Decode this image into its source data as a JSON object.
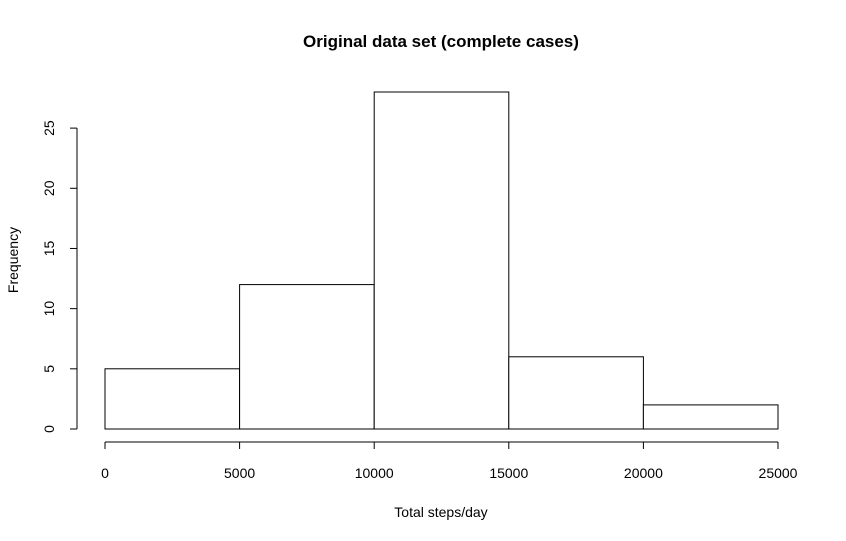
{
  "chart_data": {
    "type": "bar",
    "title": "Original data set (complete cases)",
    "xlabel": "Total steps/day",
    "ylabel": "Frequency",
    "bins": [
      {
        "from": 0,
        "to": 5000,
        "count": 5
      },
      {
        "from": 5000,
        "to": 10000,
        "count": 12
      },
      {
        "from": 10000,
        "to": 15000,
        "count": 28
      },
      {
        "from": 15000,
        "to": 20000,
        "count": 6
      },
      {
        "from": 20000,
        "to": 25000,
        "count": 2
      }
    ],
    "xticks": [
      0,
      5000,
      10000,
      15000,
      20000,
      25000
    ],
    "yticks": [
      0,
      5,
      10,
      15,
      20,
      25
    ],
    "xlim": [
      0,
      25000
    ],
    "ylim": [
      0,
      28
    ],
    "grid": false,
    "colors": {
      "fill": "#ffffff",
      "stroke": "#000000"
    }
  }
}
